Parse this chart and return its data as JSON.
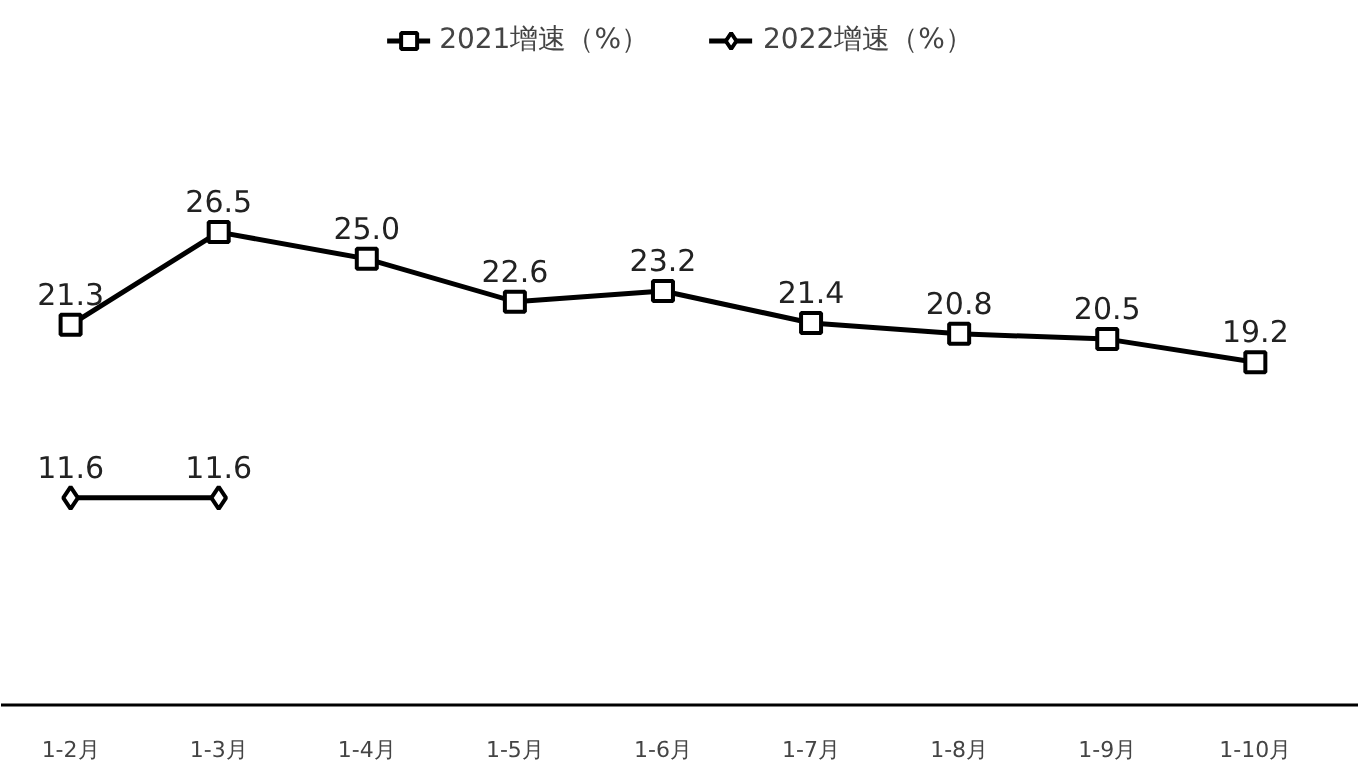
{
  "chart_data": {
    "type": "line",
    "categories": [
      "1-2月",
      "1-3月",
      "1-4月",
      "1-5月",
      "1-6月",
      "1-7月",
      "1-8月",
      "1-9月",
      "1-10月"
    ],
    "series": [
      {
        "name": "2021增速（%）",
        "color": "#000000",
        "marker": "square",
        "values": [
          21.3,
          26.5,
          25.0,
          22.6,
          23.2,
          21.4,
          20.8,
          20.5,
          19.2
        ],
        "value_labels": [
          "21.3",
          "26.5",
          "25.0",
          "22.6",
          "23.2",
          "21.4",
          "20.8",
          "20.5",
          "19.2"
        ]
      },
      {
        "name": "2022增速（%）",
        "color": "#000000",
        "marker": "diamond",
        "values": [
          11.6,
          11.6,
          null,
          null,
          null,
          null,
          null,
          null,
          null
        ],
        "value_labels": [
          "11.6",
          "11.6",
          null,
          null,
          null,
          null,
          null,
          null,
          null
        ]
      }
    ],
    "legend": "top",
    "grid": false,
    "line_style": "solid",
    "tick_labels": "x"
  }
}
